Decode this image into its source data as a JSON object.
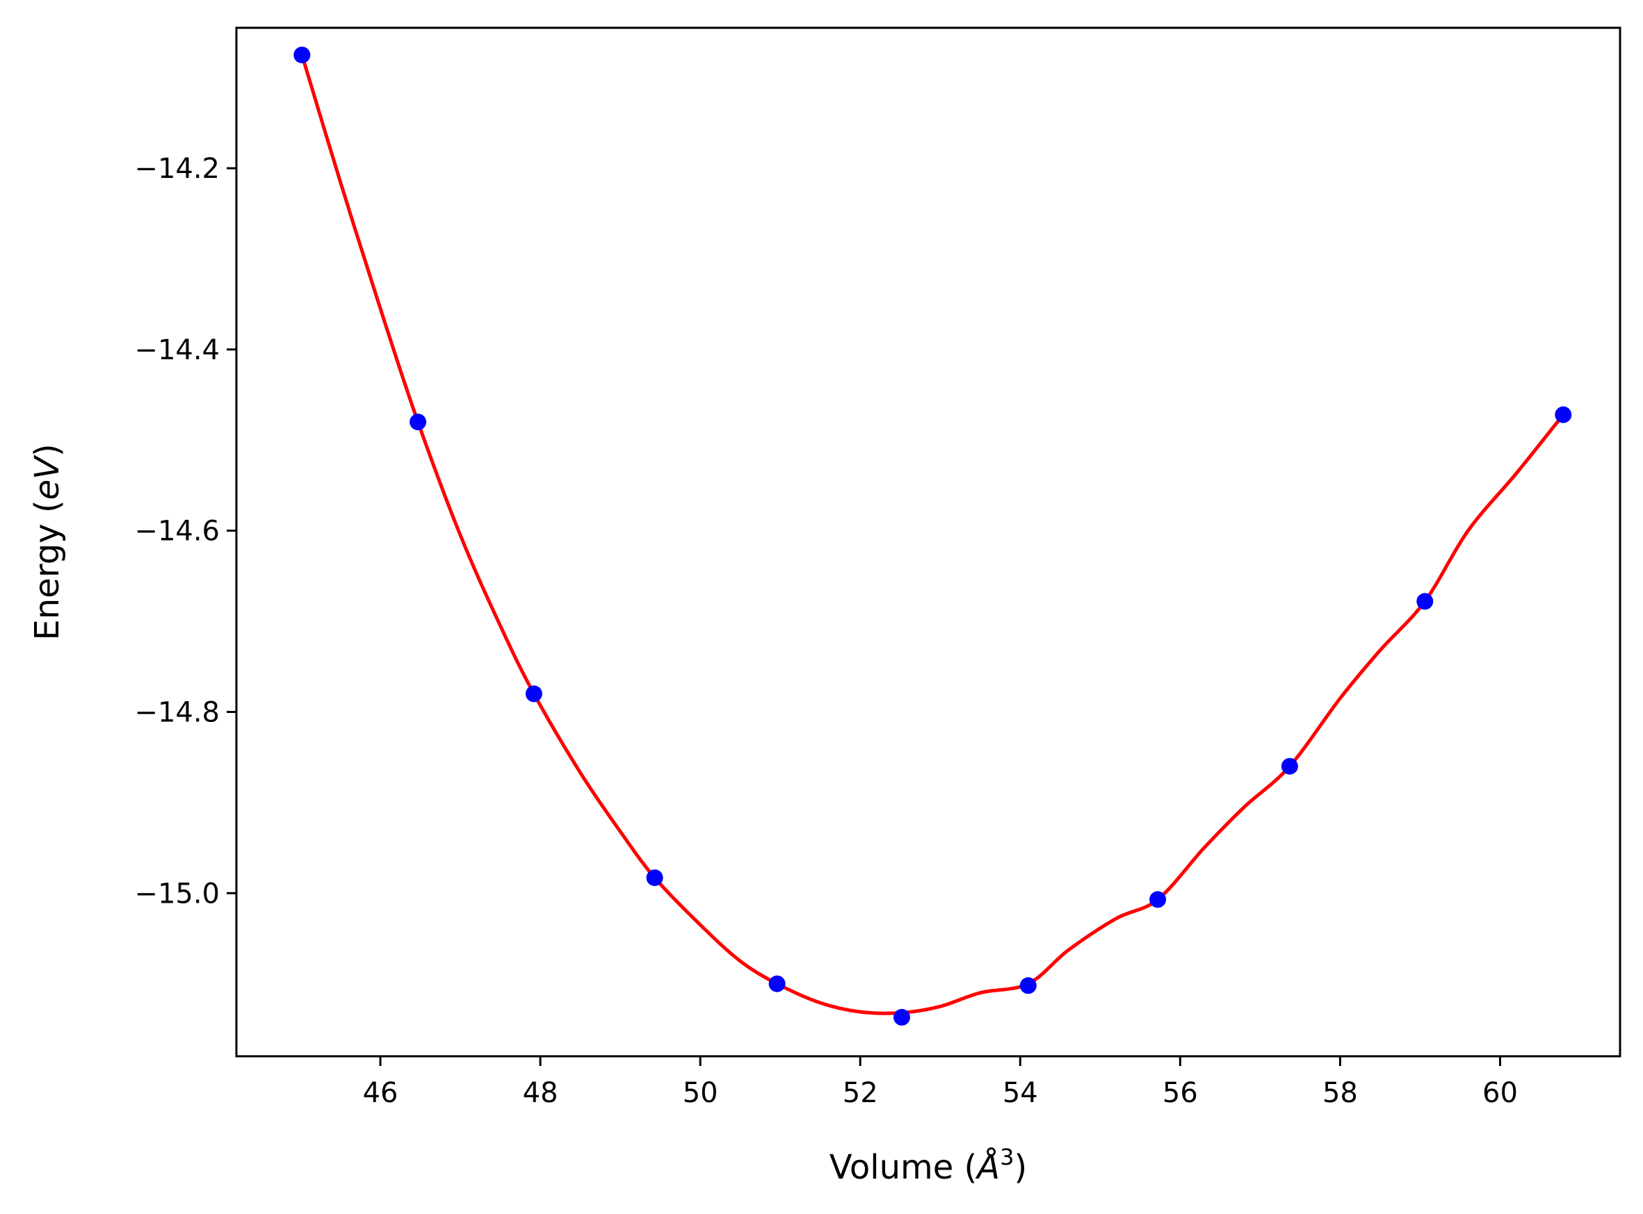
{
  "chart_data": {
    "type": "scatter",
    "title": "",
    "xlabel_parts": [
      "Volume (",
      "Å",
      "3",
      ")"
    ],
    "ylabel_parts": [
      "Energy (",
      "eV",
      ")"
    ],
    "xlim": [
      44.2,
      61.5
    ],
    "ylim": [
      -15.18,
      -14.045
    ],
    "x_ticks": [
      46,
      48,
      50,
      52,
      54,
      56,
      58,
      60
    ],
    "x_tick_labels": [
      "46",
      "48",
      "50",
      "52",
      "54",
      "56",
      "58",
      "60"
    ],
    "y_ticks": [
      -14.2,
      -14.4,
      -14.6,
      -14.8,
      -15.0
    ],
    "y_tick_labels": [
      "−14.2",
      "−14.4",
      "−14.6",
      "−14.8",
      "−15.0"
    ],
    "grid": false,
    "series": [
      {
        "kind": "points",
        "color": "#0000ff",
        "x": [
          45.02,
          46.47,
          47.92,
          49.43,
          50.96,
          52.52,
          54.1,
          55.72,
          57.37,
          59.06,
          60.79
        ],
        "y": [
          -14.075,
          -14.48,
          -14.78,
          -14.983,
          -15.1,
          -15.137,
          -15.102,
          -15.007,
          -14.86,
          -14.678,
          -14.472
        ]
      },
      {
        "kind": "fit-line",
        "color": "#ff0000",
        "x": [
          45.02,
          45.5,
          46.0,
          46.47,
          47.0,
          47.5,
          47.92,
          48.5,
          49.0,
          49.43,
          50.0,
          50.5,
          50.96,
          51.5,
          52.0,
          52.52,
          53.0,
          53.5,
          54.1,
          54.6,
          55.2,
          55.72,
          56.3,
          56.8,
          57.37,
          58.0,
          58.5,
          59.06,
          59.6,
          60.2,
          60.79
        ],
        "y": [
          -14.075,
          -14.215,
          -14.355,
          -14.48,
          -14.605,
          -14.705,
          -14.78,
          -14.867,
          -14.932,
          -14.983,
          -15.035,
          -15.075,
          -15.1,
          -15.121,
          -15.131,
          -15.132,
          -15.125,
          -15.11,
          -15.1,
          -15.063,
          -15.028,
          -15.007,
          -14.95,
          -14.905,
          -14.86,
          -14.785,
          -14.732,
          -14.678,
          -14.6,
          -14.537,
          -14.472
        ]
      }
    ]
  }
}
